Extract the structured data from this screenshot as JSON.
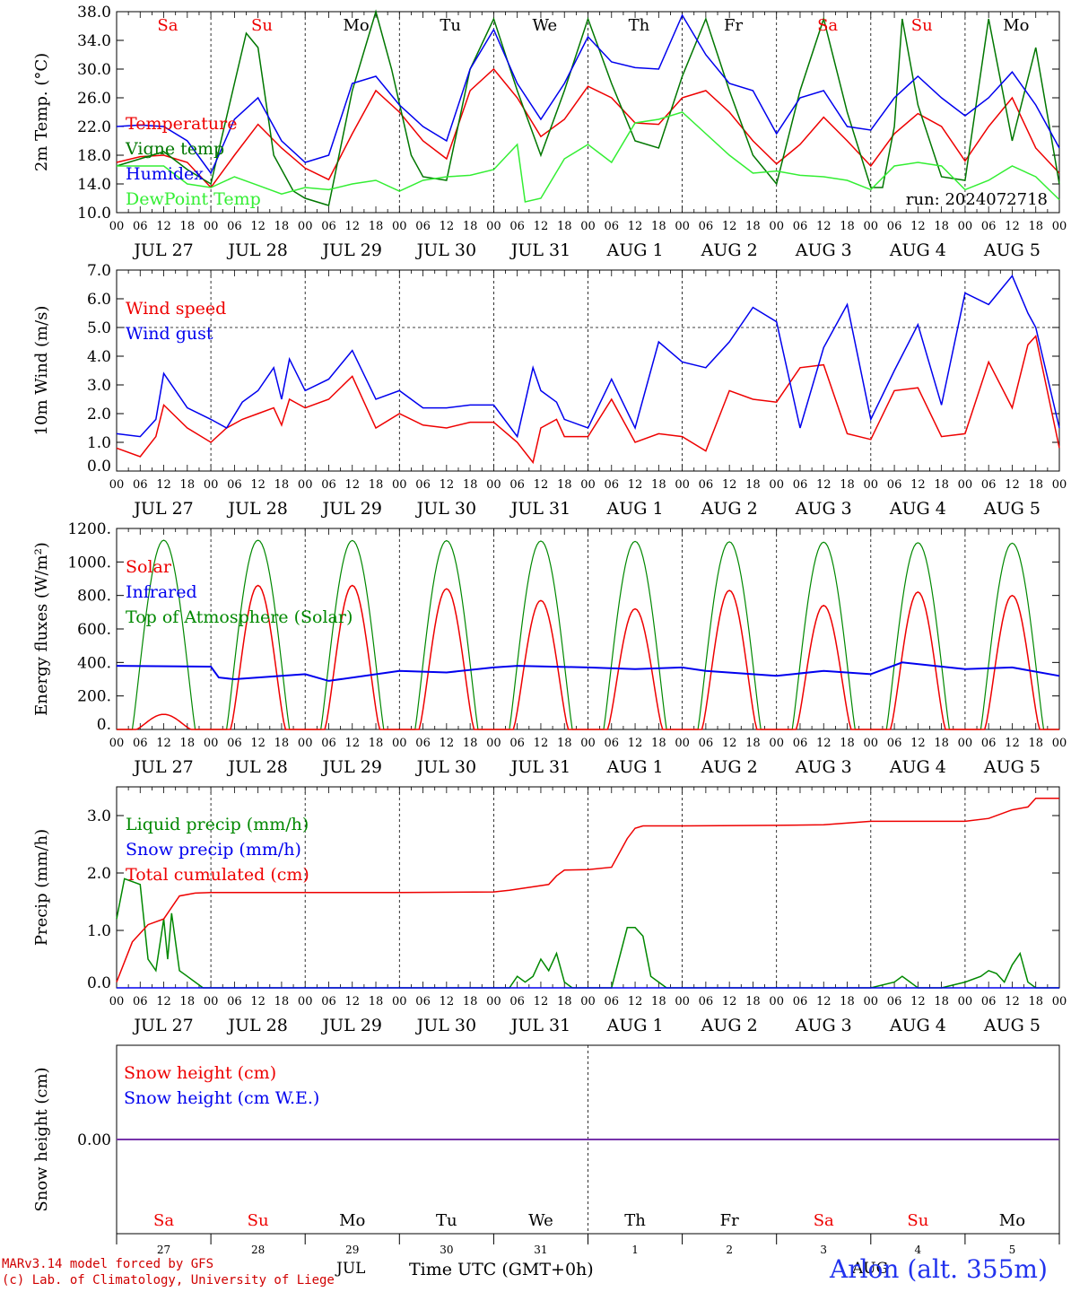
{
  "chart_data": [
    {
      "type": "line",
      "ylabel": "2m Temp. (°C)",
      "ylim": [
        10,
        38
      ],
      "yticks": [
        "10.0",
        "14.0",
        "18.0",
        "22.0",
        "26.0",
        "30.0",
        "34.0",
        "38.0"
      ],
      "legend": [
        "Temperature",
        "Vigne temp",
        "Humidex",
        "DewPoint Temp"
      ],
      "annotation": "run: 2024072718",
      "x_unit": "hours since 2024-07-27 00 UTC",
      "series": [
        {
          "name": "Temperature",
          "color": "#ee0000",
          "x": [
            0,
            6,
            12,
            18,
            24,
            30,
            36,
            42,
            48,
            54,
            60,
            66,
            72,
            78,
            84,
            90,
            96,
            102,
            108,
            114,
            120,
            126,
            132,
            138,
            144,
            150,
            156,
            162,
            168,
            174,
            180,
            186,
            192,
            198,
            204,
            210,
            216,
            222,
            228,
            234,
            240
          ],
          "y": [
            17,
            17.8,
            18,
            17,
            13.5,
            18,
            22.3,
            19,
            16.2,
            14.6,
            21,
            27,
            24,
            20,
            17.5,
            27,
            30,
            26,
            20.6,
            23,
            27.6,
            26,
            22.5,
            22.3,
            26,
            27,
            24,
            20,
            16.8,
            19.5,
            23.3,
            20,
            16.5,
            21,
            23.8,
            22,
            17.2,
            22,
            26,
            19,
            15.5
          ]
        },
        {
          "name": "Vigne temp",
          "color": "#007700",
          "x": [
            0,
            6,
            12,
            18,
            24,
            30,
            33,
            36,
            40,
            45,
            48,
            54,
            60,
            66,
            70,
            75,
            78,
            84,
            90,
            96,
            102,
            108,
            114,
            120,
            126,
            132,
            138,
            144,
            150,
            156,
            162,
            168,
            174,
            180,
            186,
            192,
            195,
            198,
            200,
            204,
            210,
            216,
            222,
            228,
            234,
            240
          ],
          "y": [
            16.5,
            17.5,
            18.5,
            16,
            14,
            28,
            35,
            33,
            18,
            13,
            12,
            11,
            27,
            38,
            30,
            18,
            15,
            14.5,
            30,
            37,
            27,
            18,
            27,
            37,
            28,
            20,
            19,
            29,
            37,
            27,
            18,
            14,
            27,
            37,
            24,
            13.5,
            13.5,
            22,
            37,
            25,
            15,
            14.5,
            37,
            20,
            33,
            14
          ]
        },
        {
          "name": "Humidex",
          "color": "#0000ee",
          "x": [
            0,
            6,
            12,
            18,
            24,
            30,
            36,
            42,
            48,
            54,
            60,
            66,
            72,
            78,
            84,
            90,
            96,
            102,
            108,
            114,
            120,
            126,
            132,
            138,
            144,
            150,
            156,
            162,
            168,
            174,
            180,
            186,
            192,
            198,
            204,
            210,
            216,
            222,
            228,
            234,
            240
          ],
          "y": [
            22,
            22.2,
            22,
            20,
            15.5,
            23,
            26,
            20,
            17,
            18,
            28,
            29,
            25,
            22,
            20,
            30,
            35.5,
            28,
            23,
            28,
            34.5,
            31,
            30.2,
            30,
            37.5,
            32,
            28,
            27,
            21,
            26,
            27,
            22,
            21.5,
            26,
            29,
            26,
            23.5,
            26,
            29.6,
            25,
            19
          ]
        },
        {
          "name": "DewPoint Temp",
          "color": "#33ee33",
          "x": [
            0,
            6,
            12,
            18,
            24,
            30,
            36,
            42,
            48,
            54,
            60,
            66,
            72,
            78,
            84,
            90,
            96,
            102,
            104,
            108,
            114,
            120,
            126,
            132,
            138,
            144,
            150,
            156,
            162,
            168,
            174,
            180,
            186,
            192,
            198,
            204,
            210,
            216,
            222,
            228,
            234,
            240
          ],
          "y": [
            16.5,
            16.5,
            16.5,
            14,
            13.5,
            15,
            13.8,
            12.6,
            13.5,
            13.2,
            14,
            14.5,
            13,
            14.5,
            15,
            15.2,
            16,
            19.5,
            11.5,
            12,
            17.5,
            19.5,
            17,
            22.5,
            23,
            24,
            21,
            18,
            15.5,
            15.8,
            15.2,
            15,
            14.5,
            13.2,
            16.5,
            17,
            16.5,
            13.2,
            14.5,
            16.5,
            15,
            11.8
          ]
        }
      ]
    },
    {
      "type": "line",
      "ylabel": "10m Wind (m/s)",
      "ylim": [
        0,
        7
      ],
      "yticks": [
        "0.0",
        "1.0",
        "2.0",
        "3.0",
        "4.0",
        "5.0",
        "6.0",
        "7.0"
      ],
      "reference_line": 5.0,
      "legend": [
        "Wind speed",
        "Wind gust"
      ],
      "series": [
        {
          "name": "Wind speed",
          "color": "#ee0000",
          "x": [
            0,
            6,
            10,
            12,
            18,
            24,
            28,
            32,
            36,
            40,
            42,
            44,
            48,
            54,
            60,
            66,
            72,
            78,
            84,
            90,
            96,
            102,
            106,
            108,
            112,
            114,
            120,
            126,
            132,
            138,
            144,
            150,
            156,
            162,
            168,
            174,
            180,
            186,
            192,
            198,
            204,
            210,
            216,
            222,
            228,
            232,
            234,
            240
          ],
          "y": [
            0.8,
            0.5,
            1.2,
            2.3,
            1.5,
            1.0,
            1.5,
            1.8,
            2.0,
            2.2,
            1.6,
            2.5,
            2.2,
            2.5,
            3.3,
            1.5,
            2.0,
            1.6,
            1.5,
            1.7,
            1.7,
            1.0,
            0.3,
            1.5,
            1.8,
            1.2,
            1.2,
            2.5,
            1.0,
            1.3,
            1.2,
            0.7,
            2.8,
            2.5,
            2.4,
            3.6,
            3.7,
            1.3,
            1.1,
            2.8,
            2.9,
            1.2,
            1.3,
            3.8,
            2.2,
            4.4,
            4.7,
            0.8
          ]
        },
        {
          "name": "Wind gust",
          "color": "#0000ee",
          "x": [
            0,
            6,
            10,
            12,
            18,
            24,
            28,
            32,
            36,
            40,
            42,
            44,
            48,
            54,
            60,
            66,
            72,
            78,
            84,
            90,
            96,
            102,
            106,
            108,
            112,
            114,
            120,
            126,
            132,
            138,
            144,
            150,
            156,
            162,
            168,
            174,
            180,
            186,
            192,
            198,
            204,
            210,
            216,
            222,
            228,
            232,
            234,
            240
          ],
          "y": [
            1.3,
            1.2,
            1.8,
            3.4,
            2.2,
            1.8,
            1.5,
            2.4,
            2.8,
            3.6,
            2.5,
            3.9,
            2.8,
            3.2,
            4.2,
            2.5,
            2.8,
            2.2,
            2.2,
            2.3,
            2.3,
            1.2,
            3.6,
            2.8,
            2.4,
            1.8,
            1.5,
            3.2,
            1.5,
            4.5,
            3.8,
            3.6,
            4.5,
            5.7,
            5.2,
            1.5,
            4.3,
            5.8,
            1.8,
            3.5,
            5.1,
            2.3,
            6.2,
            5.8,
            6.8,
            5.5,
            5.0,
            1.5
          ]
        }
      ]
    },
    {
      "type": "line",
      "ylabel": "Energy fluxes (W/m²)",
      "ylim": [
        0,
        1200
      ],
      "yticks": [
        "0.",
        "200.",
        "400.",
        "600.",
        "800.",
        "1000.",
        "1200."
      ],
      "legend": [
        "Solar",
        "Infrared",
        "Top of Atmosphere (Solar)"
      ],
      "daily_toa_peak": [
        1130,
        1130,
        1128,
        1127,
        1125,
        1123,
        1120,
        1118,
        1115,
        1112
      ],
      "daily_solar_peak": [
        90,
        860,
        860,
        840,
        770,
        720,
        830,
        740,
        820,
        800
      ],
      "infrared": {
        "x": [
          0,
          24,
          26,
          30,
          48,
          54,
          72,
          84,
          96,
          102,
          120,
          132,
          144,
          150,
          168,
          180,
          192,
          200,
          216,
          228,
          240
        ],
        "y": [
          380,
          375,
          310,
          300,
          330,
          290,
          350,
          340,
          370,
          380,
          370,
          360,
          370,
          350,
          320,
          350,
          330,
          400,
          360,
          370,
          320
        ]
      },
      "series": [
        {
          "name": "Solar",
          "color": "#ee0000"
        },
        {
          "name": "Infrared",
          "color": "#0000ee"
        },
        {
          "name": "Top of Atmosphere (Solar)",
          "color": "#008800"
        }
      ]
    },
    {
      "type": "line",
      "ylabel": "Precip (mm/h)",
      "ylim": [
        0,
        3.5
      ],
      "yticks": [
        "0.0",
        "1.0",
        "2.0",
        "3.0"
      ],
      "legend": [
        "Liquid precip (mm/h)",
        "Snow precip (mm/h)",
        "Total cumulated (cm)"
      ],
      "series": [
        {
          "name": "Liquid precip (mm/h)",
          "color": "#008800",
          "x": [
            0,
            2,
            6,
            8,
            10,
            12,
            13,
            14,
            16,
            18,
            20,
            22,
            24,
            100,
            102,
            104,
            106,
            108,
            110,
            112,
            114,
            116,
            118,
            120,
            126,
            130,
            132,
            134,
            136,
            138,
            140,
            142,
            144,
            180,
            186,
            192,
            198,
            200,
            204,
            210,
            216,
            220,
            222,
            224,
            226,
            228,
            230,
            232,
            234,
            240
          ],
          "y": [
            1.2,
            1.9,
            1.8,
            0.5,
            0.3,
            1.2,
            0.5,
            1.3,
            0.3,
            0.2,
            0.1,
            0,
            0,
            0,
            0.2,
            0.1,
            0.2,
            0.5,
            0.3,
            0.6,
            0.1,
            0,
            0,
            0,
            0,
            1.05,
            1.05,
            0.9,
            0.2,
            0.1,
            0,
            0,
            0,
            0,
            0,
            0,
            0.1,
            0.2,
            0,
            0,
            0.1,
            0.2,
            0.3,
            0.25,
            0.1,
            0.4,
            0.6,
            0.1,
            0,
            0
          ]
        },
        {
          "name": "Snow precip (mm/h)",
          "color": "#0000ee",
          "x": [
            0,
            240
          ],
          "y": [
            0,
            0
          ]
        },
        {
          "name": "Total cumulated (cm)",
          "color": "#ee0000",
          "x": [
            0,
            4,
            8,
            12,
            16,
            20,
            24,
            48,
            72,
            96,
            100,
            106,
            110,
            112,
            114,
            120,
            126,
            130,
            132,
            134,
            144,
            168,
            180,
            192,
            204,
            216,
            222,
            228,
            232,
            234,
            240
          ],
          "y": [
            0.1,
            0.8,
            1.1,
            1.2,
            1.6,
            1.65,
            1.66,
            1.66,
            1.66,
            1.67,
            1.7,
            1.76,
            1.8,
            1.95,
            2.05,
            2.06,
            2.1,
            2.6,
            2.78,
            2.82,
            2.82,
            2.83,
            2.84,
            2.9,
            2.9,
            2.9,
            2.95,
            3.1,
            3.15,
            3.3,
            3.3
          ]
        }
      ]
    },
    {
      "type": "line",
      "ylabel": "Snow height (cm)",
      "ytick": "0.00",
      "legend": [
        "Snow height (cm)",
        "Snow height (cm W.E.)"
      ],
      "series": [
        {
          "name": "Snow height (cm)",
          "color": "#ee0000",
          "x": [
            0,
            240
          ],
          "y": [
            0,
            0
          ]
        },
        {
          "name": "Snow height (cm W.E.)",
          "color": "#0000ee",
          "x": [
            0,
            240
          ],
          "y": [
            0,
            0
          ]
        }
      ]
    }
  ],
  "x_axis": {
    "hour_ticks": [
      "00",
      "06",
      "12",
      "18"
    ],
    "date_labels": [
      "JUL 27",
      "JUL 28",
      "JUL 29",
      "JUL 30",
      "JUL 31",
      "AUG  1",
      "AUG  2",
      "AUG  3",
      "AUG  4",
      "AUG  5"
    ],
    "end_tick": "00"
  },
  "weekdays": [
    {
      "label": "Sa",
      "color": "#ee0000"
    },
    {
      "label": "Su",
      "color": "#ee0000"
    },
    {
      "label": "Mo",
      "color": "#000000"
    },
    {
      "label": "Tu",
      "color": "#000000"
    },
    {
      "label": "We",
      "color": "#000000"
    },
    {
      "label": "Th",
      "color": "#000000"
    },
    {
      "label": "Fr",
      "color": "#000000"
    },
    {
      "label": "Sa",
      "color": "#ee0000"
    },
    {
      "label": "Su",
      "color": "#ee0000"
    },
    {
      "label": "Mo",
      "color": "#000000"
    }
  ],
  "bottom_day_numbers": [
    "27",
    "28",
    "29",
    "30",
    "31",
    "1",
    "2",
    "3",
    "4",
    "5"
  ],
  "footer": {
    "credit_line1": "MARv3.14 model forced by GFS",
    "credit_line2": "(c) Lab. of Climatology, University of Liege",
    "month_jul": "JUL",
    "axis_title": "Time UTC (GMT+0h)",
    "month_aug": "AUG",
    "station": "Arlon (alt. 355m)"
  }
}
